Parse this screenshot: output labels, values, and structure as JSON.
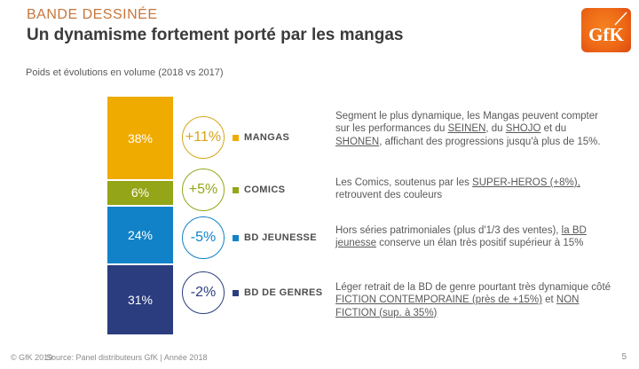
{
  "header": {
    "kicker": "BANDE DESSINÉE",
    "title": "Un dynamisme fortement porté par les mangas",
    "subtitle": "Poids et évolutions en volume (2018 vs 2017)",
    "kicker_color": "#C8763C"
  },
  "logo": {
    "text": "GfK"
  },
  "chart_data": {
    "type": "bar",
    "stacked": true,
    "orientation": "vertical",
    "title": "Poids et évolutions en volume (2018 vs 2017)",
    "categories": [
      "MANGAS",
      "COMICS",
      "BD JEUNESSE",
      "BD DE GENRES"
    ],
    "series": [
      {
        "name": "Poids en volume 2018 (%)",
        "values": [
          38,
          6,
          24,
          31
        ]
      },
      {
        "name": "Évolution 2018 vs 2017",
        "values": [
          "+11%",
          "+5%",
          "-5%",
          "-2%"
        ]
      }
    ],
    "colors": [
      "#F0AB00",
      "#94A617",
      "#1282C8",
      "#2B3D7E"
    ],
    "legend_position": "right"
  },
  "segments": [
    {
      "label": "MANGAS",
      "value": 38,
      "share": "38%",
      "evolution": "+11%",
      "color": "#F0AB00",
      "accent": "#D6A51C"
    },
    {
      "label": "COMICS",
      "value": 6,
      "share": "6%",
      "evolution": "+5%",
      "color": "#94A617",
      "accent": "#94A617"
    },
    {
      "label": "BD JEUNESSE",
      "value": 24,
      "share": "24%",
      "evolution": "-5%",
      "color": "#1282C8",
      "accent": "#1282C8"
    },
    {
      "label": "BD DE GENRES",
      "value": 31,
      "share": "31%",
      "evolution": "-2%",
      "color": "#2B3D7E",
      "accent": "#2B3D7E"
    }
  ],
  "annotations": [
    [
      {
        "t": "Segment le plus dynamique, les Mangas peuvent compter sur les performances du "
      },
      {
        "t": "SEINEN",
        "u": true
      },
      {
        "t": ", du "
      },
      {
        "t": "SHOJO",
        "u": true
      },
      {
        "t": " et du "
      },
      {
        "t": "SHONEN",
        "u": true
      },
      {
        "t": ", affichant des progressions jusqu'à plus de 15%."
      }
    ],
    [
      {
        "t": "Les Comics, soutenus par les "
      },
      {
        "t": "SUPER-HEROS (+8%),",
        "u": true
      },
      {
        "t": " retrouvent des couleurs"
      }
    ],
    [
      {
        "t": "Hors séries patrimoniales (plus d'1/3 des ventes), "
      },
      {
        "t": "la BD jeunesse",
        "u": true
      },
      {
        "t": " conserve un élan très positif supérieur à 15%"
      }
    ],
    [
      {
        "t": "Léger retrait de la BD de genre pourtant très dynamique côté "
      },
      {
        "t": "FICTION CONTEMPORAINE (près de +15%)",
        "u": true
      },
      {
        "t": " et "
      },
      {
        "t": "NON FICTION (sup. à 35%)",
        "u": true
      }
    ]
  ],
  "footer": {
    "copyright": "© GfK 2019",
    "source": "Source: Panel distributeurs GfK | Année 2018",
    "page": "5"
  }
}
